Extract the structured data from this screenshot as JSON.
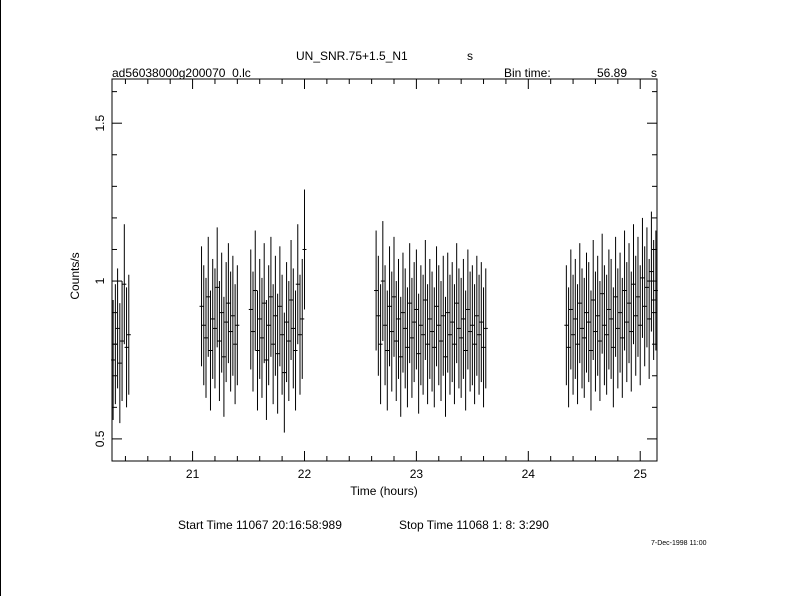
{
  "header": {
    "object": "UN_SNR.75+1.5_N1",
    "object_unit": "s",
    "filename": "ad56038000g200070_0.lc",
    "bin_time_label": "Bin time:",
    "bin_time_value": "56.89",
    "bin_time_unit": "s"
  },
  "footer": {
    "start_time": "Start Time 11067 20:16:58:989",
    "stop_time": "Stop Time 11068  1: 8: 3:290",
    "stamp": "7-Dec-1998 11:00"
  },
  "chart_data": {
    "type": "scatter",
    "title": "UN_SNR.75+1.5_N1",
    "xlabel": "Time (hours)",
    "ylabel": "Counts/s",
    "xlim": [
      20.28,
      25.15
    ],
    "ylim": [
      0.43,
      1.64
    ],
    "x_ticks": [
      "21",
      "22",
      "23",
      "24",
      "25"
    ],
    "y_ticks": [
      "0.5",
      "1",
      "1.5"
    ],
    "grid": false,
    "legend": "none",
    "error_bars": true,
    "series": [
      {
        "x": [
          20.29,
          20.31,
          20.33,
          20.35,
          20.37,
          20.39,
          20.41,
          20.43,
          21.08,
          21.1,
          21.12,
          21.14,
          21.16,
          21.18,
          21.2,
          21.22,
          21.24,
          21.26,
          21.28,
          21.3,
          21.32,
          21.34,
          21.36,
          21.38,
          21.4,
          21.52,
          21.54,
          21.56,
          21.58,
          21.6,
          21.62,
          21.64,
          21.66,
          21.68,
          21.7,
          21.72,
          21.74,
          21.76,
          21.78,
          21.8,
          21.82,
          21.84,
          21.86,
          21.88,
          21.9,
          21.92,
          21.94,
          21.96,
          21.98,
          22.0,
          22.64,
          22.66,
          22.68,
          22.7,
          22.72,
          22.74,
          22.76,
          22.78,
          22.8,
          22.82,
          22.84,
          22.86,
          22.88,
          22.9,
          22.92,
          22.94,
          22.96,
          22.98,
          23.0,
          23.02,
          23.04,
          23.06,
          23.08,
          23.1,
          23.12,
          23.14,
          23.16,
          23.18,
          23.2,
          23.22,
          23.24,
          23.26,
          23.28,
          23.3,
          23.32,
          23.34,
          23.36,
          23.38,
          23.4,
          23.42,
          23.44,
          23.46,
          23.48,
          23.5,
          23.52,
          23.54,
          23.56,
          23.58,
          23.6,
          23.62,
          24.34,
          24.36,
          24.38,
          24.4,
          24.42,
          24.44,
          24.46,
          24.48,
          24.5,
          24.52,
          24.54,
          24.56,
          24.58,
          24.6,
          24.62,
          24.64,
          24.66,
          24.68,
          24.7,
          24.72,
          24.74,
          24.76,
          24.78,
          24.8,
          24.82,
          24.84,
          24.86,
          24.88,
          24.9,
          24.92,
          24.94,
          24.96,
          24.98,
          25.0,
          25.02,
          25.04,
          25.06,
          25.08,
          25.1,
          25.12,
          25.14
        ],
        "y": [
          0.75,
          0.8,
          0.85,
          0.74,
          0.81,
          0.99,
          0.79,
          0.83,
          0.92,
          0.86,
          0.82,
          0.95,
          0.78,
          0.88,
          0.85,
          0.98,
          0.81,
          0.9,
          0.76,
          0.87,
          0.93,
          0.84,
          0.89,
          0.8,
          0.86,
          0.91,
          0.84,
          0.97,
          0.78,
          0.88,
          0.82,
          0.93,
          0.75,
          0.86,
          0.95,
          0.8,
          0.89,
          0.77,
          0.92,
          0.83,
          0.71,
          0.87,
          0.81,
          0.94,
          0.85,
          0.78,
          0.99,
          0.83,
          0.88,
          1.1,
          0.97,
          0.89,
          0.8,
          1.0,
          0.86,
          0.78,
          0.92,
          0.84,
          0.95,
          0.81,
          0.88,
          0.76,
          0.9,
          0.85,
          0.79,
          0.93,
          0.82,
          0.87,
          0.91,
          0.77,
          0.86,
          0.83,
          0.94,
          0.8,
          0.88,
          0.84,
          0.79,
          0.92,
          0.86,
          0.81,
          0.89,
          0.76,
          0.9,
          0.83,
          0.87,
          0.8,
          0.93,
          0.85,
          0.82,
          0.88,
          0.78,
          0.91,
          0.84,
          0.86,
          0.8,
          0.89,
          0.83,
          0.87,
          0.79,
          0.85,
          0.86,
          0.79,
          0.91,
          0.83,
          0.88,
          0.8,
          0.93,
          0.85,
          0.82,
          0.9,
          0.87,
          0.78,
          0.94,
          0.84,
          0.89,
          0.81,
          0.96,
          0.86,
          0.83,
          0.91,
          0.88,
          0.79,
          0.95,
          0.85,
          0.9,
          0.82,
          0.97,
          0.87,
          0.93,
          0.84,
          0.99,
          0.89,
          0.95,
          0.86,
          1.01,
          0.92,
          0.98,
          0.88,
          1.03,
          0.94,
          0.97
        ],
        "yerr": 0.19
      }
    ]
  }
}
